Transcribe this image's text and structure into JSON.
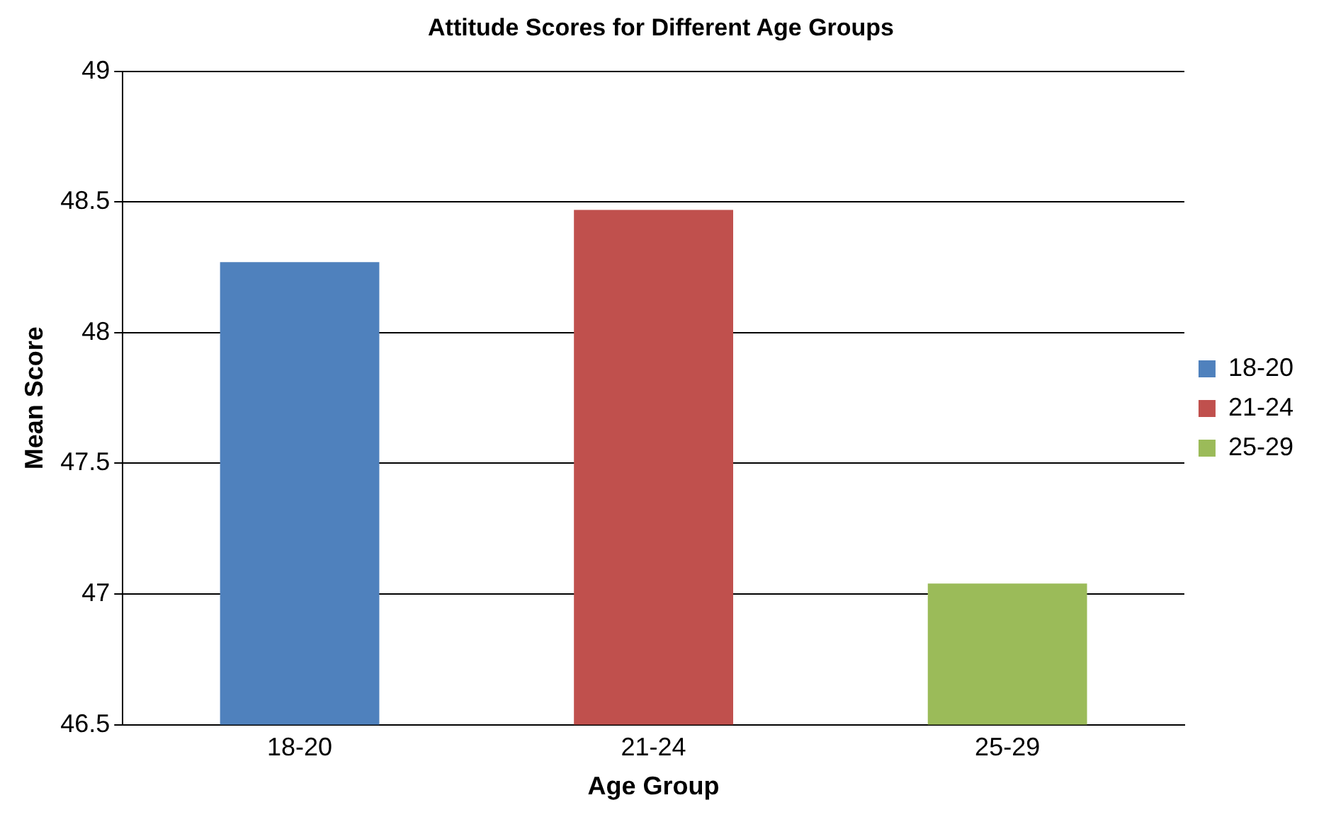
{
  "chart_data": {
    "type": "bar",
    "title": "Attitude Scores for Different Age Groups",
    "xlabel": "Age Group",
    "ylabel": "Mean Score",
    "categories": [
      "18-20",
      "21-24",
      "25-29"
    ],
    "series": [
      {
        "name": "18-20",
        "color": "#4f81bd",
        "values": [
          48.27,
          null,
          null
        ]
      },
      {
        "name": "21-24",
        "color": "#c0504d",
        "values": [
          null,
          48.47,
          null
        ]
      },
      {
        "name": "25-29",
        "color": "#9bbb59",
        "values": [
          null,
          null,
          47.04
        ]
      }
    ],
    "ylim": [
      46.5,
      49
    ],
    "yticks": [
      46.5,
      47,
      47.5,
      48,
      48.5,
      49
    ],
    "grid": "y",
    "legend": "right"
  }
}
